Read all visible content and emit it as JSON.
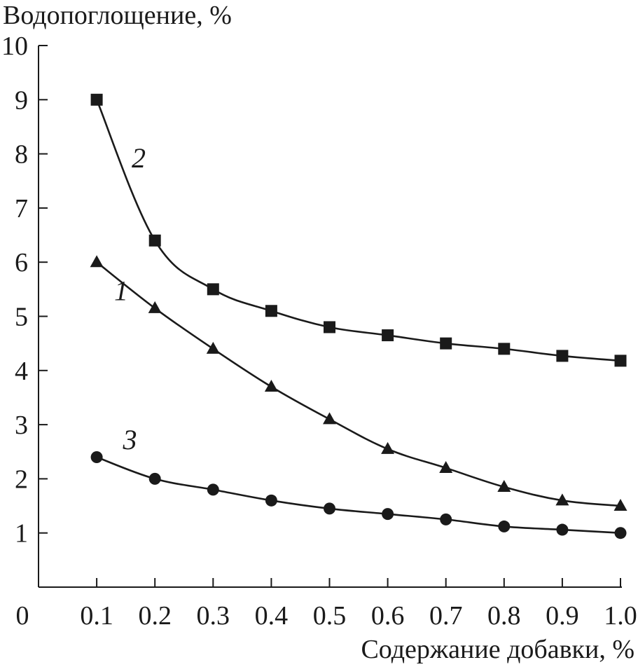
{
  "chart_data": {
    "type": "line",
    "title": "",
    "ylabel": "Водопоглощение, %",
    "xlabel": "Содержание добавки, %",
    "origin_label": "0",
    "xlim": [
      0,
      1.0
    ],
    "ylim": [
      0,
      10
    ],
    "x_ticks": [
      "0.1",
      "0.2",
      "0.3",
      "0.4",
      "0.5",
      "0.6",
      "0.7",
      "0.8",
      "0.9",
      "1.0"
    ],
    "y_ticks": [
      "1",
      "2",
      "3",
      "4",
      "5",
      "6",
      "7",
      "8",
      "9",
      "10"
    ],
    "grid": false,
    "x": [
      0.1,
      0.2,
      0.3,
      0.4,
      0.5,
      0.6,
      0.7,
      0.8,
      0.9,
      1.0
    ],
    "series": [
      {
        "name": "1",
        "marker": "triangle",
        "values": [
          6.0,
          5.15,
          4.4,
          3.7,
          3.1,
          2.55,
          2.2,
          1.85,
          1.6,
          1.5
        ],
        "label_at": [
          0.13,
          5.3
        ]
      },
      {
        "name": "2",
        "marker": "square",
        "values": [
          9.0,
          6.4,
          5.5,
          5.1,
          4.8,
          4.65,
          4.5,
          4.4,
          4.27,
          4.18
        ],
        "label_at": [
          0.16,
          7.75
        ]
      },
      {
        "name": "3",
        "marker": "circle",
        "values": [
          2.4,
          2.0,
          1.8,
          1.6,
          1.45,
          1.35,
          1.25,
          1.12,
          1.06,
          1.0
        ],
        "label_at": [
          0.145,
          2.55
        ]
      }
    ],
    "color": "#1a1a1a"
  }
}
